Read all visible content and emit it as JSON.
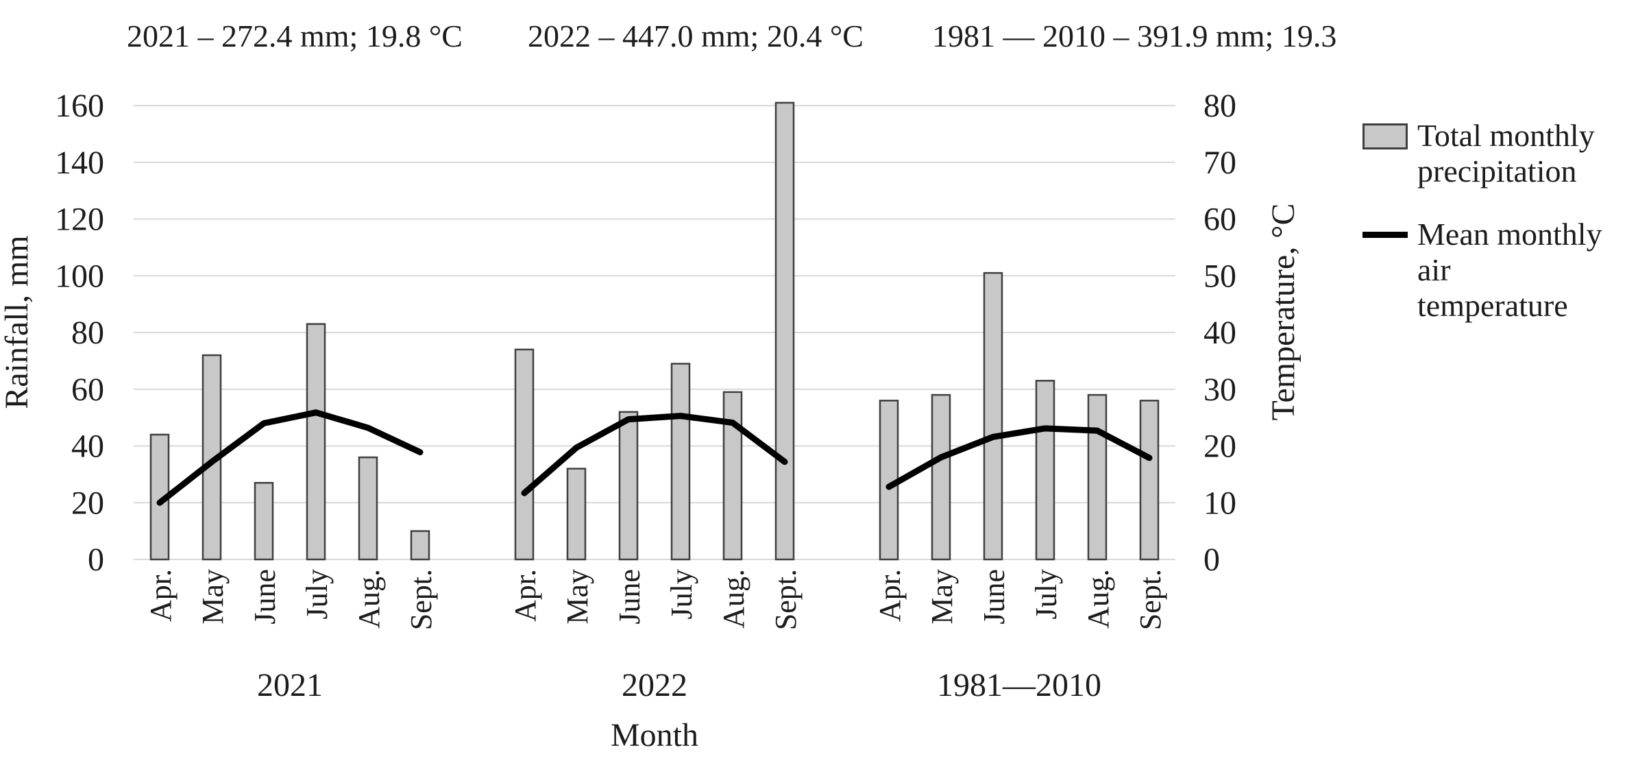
{
  "figure": {
    "background": "#ffffff"
  },
  "chart_data": {
    "type": "bar",
    "subtype": "grouped bar + line combo, dual axis",
    "annotations": [
      "2021 – 272.4 mm; 19.8 °C",
      "2022 – 447.0 mm; 20.4 °C",
      "1981 — 2010 – 391.9 mm; 19.3"
    ],
    "groups": [
      "2021",
      "2022",
      "1981—2010"
    ],
    "months": [
      "Apr.",
      "May",
      "June",
      "July",
      "Aug.",
      "Sept."
    ],
    "xlabel": "Month",
    "grid": true,
    "legend_position": "right",
    "left_axis": {
      "label": "Rainfall, mm",
      "min": 0,
      "max": 160,
      "step": 20
    },
    "right_axis": {
      "label": "Temperature, °C",
      "min": 0,
      "max": 80,
      "step": 10
    },
    "series": [
      {
        "name": "Total monthly precipitation",
        "type": "bar",
        "axis": "left",
        "unit": "mm",
        "values": [
          [
            44,
            72,
            27,
            83,
            36,
            10
          ],
          [
            74,
            32,
            52,
            69,
            59,
            161
          ],
          [
            56,
            58,
            101,
            63,
            58,
            56
          ]
        ]
      },
      {
        "name": "Mean monthly air temperature",
        "type": "line",
        "axis": "right",
        "unit": "°C",
        "values": [
          [
            10.0,
            17.2,
            24.0,
            25.9,
            23.2,
            18.9
          ],
          [
            11.7,
            19.7,
            24.7,
            25.3,
            24.1,
            17.2
          ],
          [
            12.8,
            18.0,
            21.6,
            23.1,
            22.7,
            17.9
          ]
        ]
      }
    ]
  },
  "legend": {
    "items": [
      {
        "name": "Total monthly precipitation",
        "swatch": "bar-swatch",
        "lines": [
          "Total monthly",
          "precipitation"
        ]
      },
      {
        "name": "Mean monthly air temperature",
        "swatch": "line-swatch",
        "lines": [
          "Mean monthly",
          "air",
          "temperature"
        ]
      }
    ]
  },
  "colors": {
    "bar_fill": "#c8c8c8",
    "bar_border": "#3f3f3f",
    "line": "#000000",
    "grid": "#d9d9d9",
    "text": "#1c1c1c"
  }
}
